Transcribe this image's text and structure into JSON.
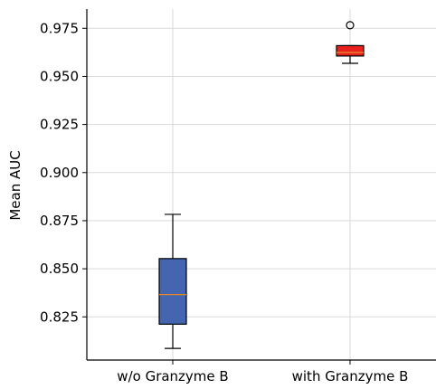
{
  "chart_data": {
    "type": "box",
    "ylabel": "Mean AUC",
    "xlabel": "",
    "title": "",
    "ylim": [
      0.80255,
      0.98501
    ],
    "yticks": [
      0.825,
      0.85,
      0.875,
      0.9,
      0.925,
      0.95,
      0.975
    ],
    "ytick_labels": [
      "0.825",
      "0.850",
      "0.875",
      "0.900",
      "0.925",
      "0.950",
      "0.975"
    ],
    "grid": true,
    "categories": [
      "w/o Granzyme B",
      "with Granzyme B"
    ],
    "boxes": [
      {
        "label": "w/o Granzyme B",
        "color": "#4466b0",
        "whisker_low": 0.8086,
        "q1": 0.8212,
        "median": 0.8366,
        "q3": 0.8553,
        "whisker_high": 0.8783,
        "outliers": []
      },
      {
        "label": "with Granzyme B",
        "color": "#e8211e",
        "whisker_low": 0.9568,
        "q1": 0.9606,
        "median": 0.9624,
        "q3": 0.966,
        "whisker_high": 0.966,
        "outliers": [
          0.9766
        ]
      }
    ],
    "median_color": "#e8862a"
  }
}
